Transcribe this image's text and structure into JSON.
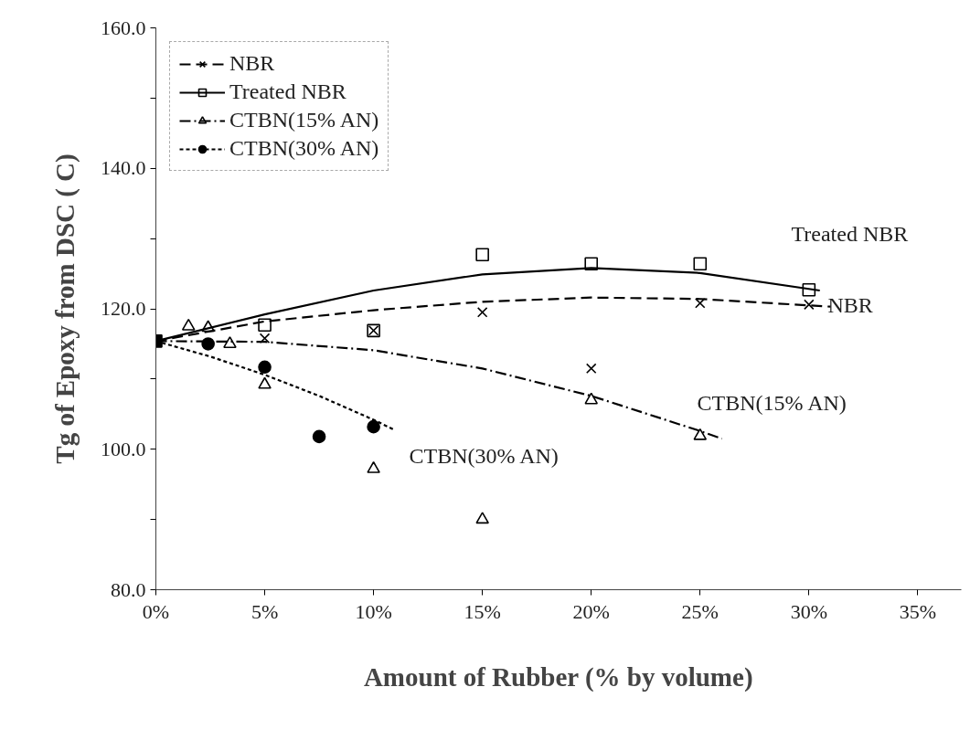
{
  "chart_data": {
    "type": "scatter",
    "xlabel": "Amount of Rubber (% by volume)",
    "ylabel": "Tg of Epoxy from DSC ( C)",
    "xlim": [
      0,
      37
    ],
    "ylim": [
      80,
      160
    ],
    "xticks": [
      {
        "value": 0,
        "label": "0%"
      },
      {
        "value": 5,
        "label": "5%"
      },
      {
        "value": 10,
        "label": "10%"
      },
      {
        "value": 15,
        "label": "15%"
      },
      {
        "value": 20,
        "label": "20%"
      },
      {
        "value": 25,
        "label": "25%"
      },
      {
        "value": 30,
        "label": "30%"
      },
      {
        "value": 35,
        "label": "35%"
      }
    ],
    "yticks": [
      {
        "value": 80,
        "label": "80.0"
      },
      {
        "value": 90,
        "label": null
      },
      {
        "value": 100,
        "label": "100.0"
      },
      {
        "value": 110,
        "label": null
      },
      {
        "value": 120,
        "label": "120.0"
      },
      {
        "value": 130,
        "label": null
      },
      {
        "value": 140,
        "label": "140.0"
      },
      {
        "value": 150,
        "label": null
      },
      {
        "value": 160,
        "label": "160.0"
      }
    ],
    "grid": false,
    "legend": "top left",
    "series": [
      {
        "name": "NBR",
        "color": "#000000",
        "marker": "cross",
        "x": [
          5,
          10,
          15,
          20,
          25,
          30
        ],
        "values": [
          115.8,
          116.9,
          119.5,
          111.5,
          120.8,
          120.6
        ]
      },
      {
        "type": "line",
        "color": "#000000",
        "line_style": "dashed",
        "x": [
          0,
          5,
          10,
          15,
          20,
          25,
          31
        ],
        "values": [
          115.4,
          118.2,
          119.8,
          121.0,
          121.6,
          121.4,
          120.3
        ]
      },
      {
        "name": "Treated NBR",
        "color": "#000000",
        "marker": "square",
        "x": [
          5,
          10,
          15,
          20,
          25,
          30
        ],
        "values": [
          117.7,
          116.9,
          127.7,
          126.4,
          126.4,
          122.7
        ]
      },
      {
        "type": "line",
        "color": "#000000",
        "line_style": "solid",
        "x": [
          0,
          5,
          10,
          15,
          20,
          25,
          30.5
        ],
        "values": [
          115.4,
          119.2,
          122.6,
          124.9,
          125.8,
          125.1,
          122.6
        ]
      },
      {
        "name": "CTBN(15% AN)",
        "color": "#000000",
        "marker": "triangle",
        "x": [
          1.5,
          2.4,
          3.4,
          5,
          10,
          15,
          20,
          25
        ],
        "values": [
          117.5,
          117.3,
          115.0,
          109.2,
          97.2,
          90.0,
          107.0,
          101.9
        ]
      },
      {
        "type": "line",
        "color": "#000000",
        "line_style": "dashdot",
        "x": [
          0,
          5,
          10,
          15,
          20,
          25,
          26
        ],
        "values": [
          115.4,
          115.3,
          114.1,
          111.5,
          107.6,
          102.6,
          101.5
        ]
      },
      {
        "name": "CTBN(30% AN)",
        "color": "#000000",
        "marker": "circle",
        "x": [
          2.4,
          5,
          7.5,
          10
        ],
        "values": [
          115.0,
          111.7,
          101.8,
          103.2
        ]
      },
      {
        "type": "line",
        "color": "#000000",
        "line_style": "dotted",
        "x": [
          0,
          2.5,
          5,
          7.5,
          10,
          11
        ],
        "values": [
          115.4,
          113.2,
          110.6,
          107.6,
          104.2,
          102.7
        ]
      },
      {
        "color": "#000000",
        "marker": "square",
        "x": [
          0
        ],
        "values": [
          115.4
        ]
      }
    ],
    "annotations": [
      "Treated NBR",
      "NBR",
      "CTBN(15% AN)",
      "CTBN(30% AN)"
    ]
  }
}
